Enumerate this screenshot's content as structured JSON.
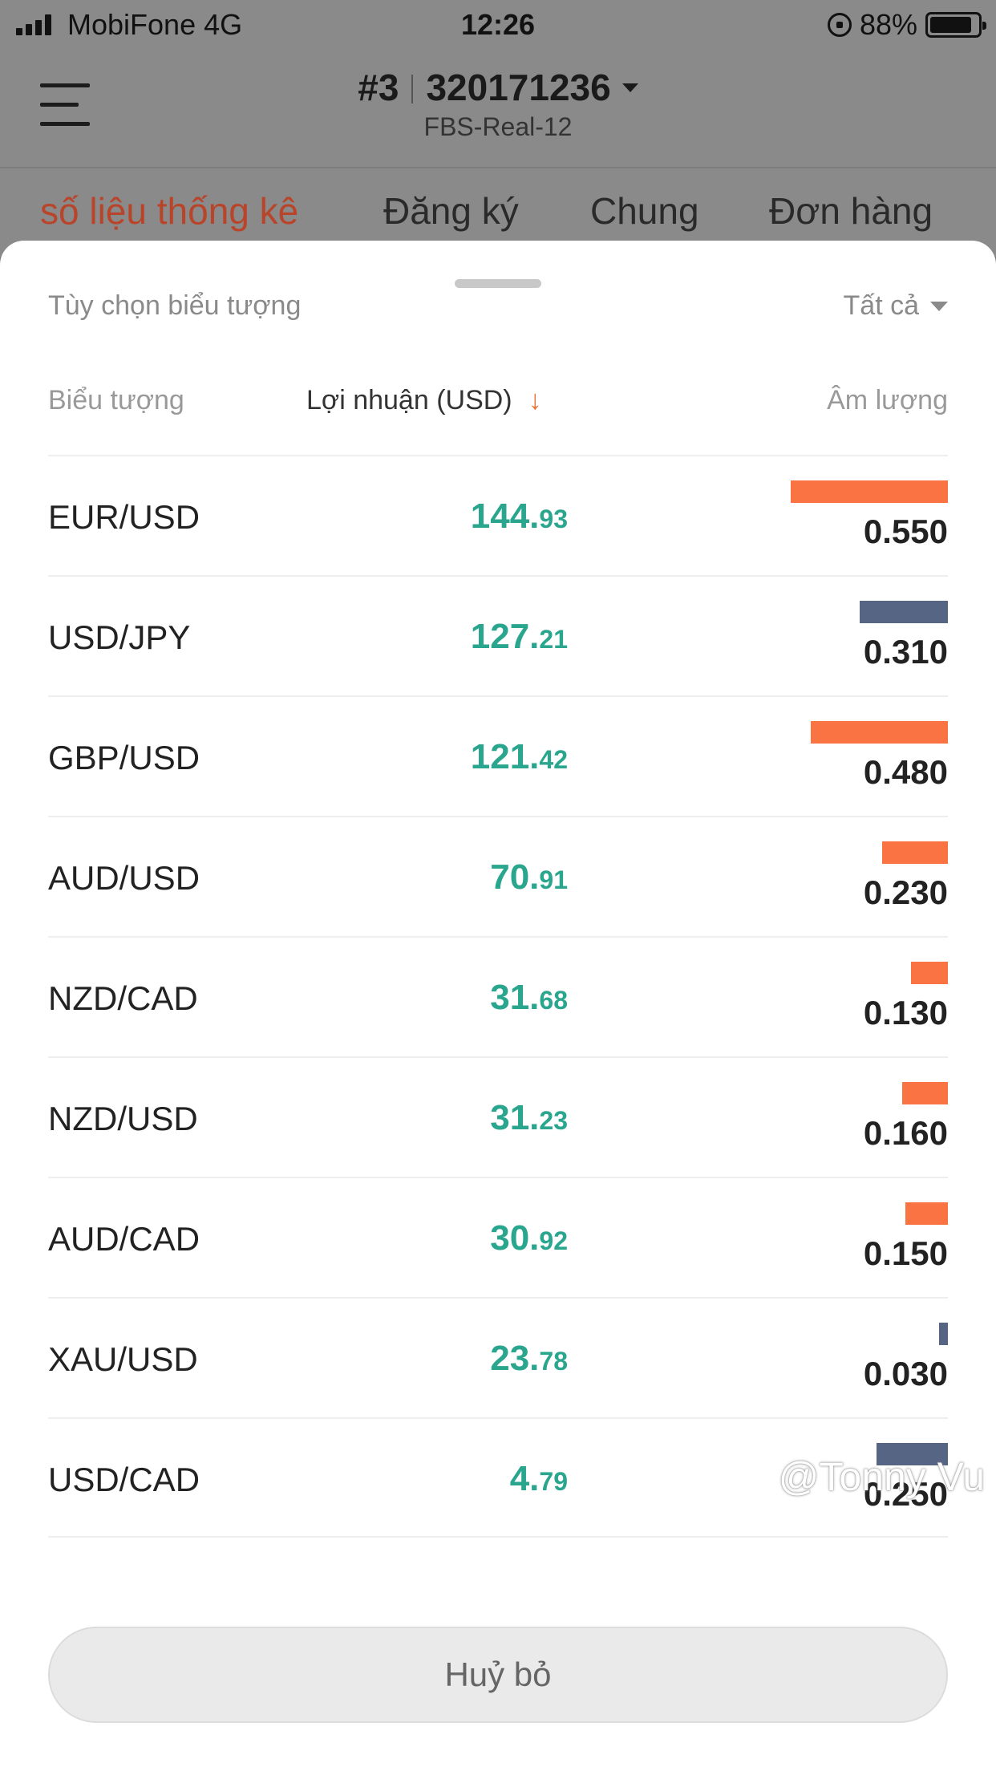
{
  "status_bar": {
    "carrier": "MobiFone   4G",
    "time": "12:26",
    "battery": "88%",
    "battery_level": 0.88
  },
  "header": {
    "account_number": "#3",
    "account_id": "320171236",
    "server": "FBS-Real-12"
  },
  "tabs": [
    {
      "label": "số liệu thống kê",
      "active": true
    },
    {
      "label": "Đăng ký",
      "active": false
    },
    {
      "label": "Chung",
      "active": false
    },
    {
      "label": "Đơn hàng",
      "active": false
    }
  ],
  "sheet": {
    "title": "Tùy chọn biểu tượng",
    "filter_label": "Tất cả",
    "columns": {
      "symbol": "Biểu tượng",
      "profit": "Lợi nhuận (USD)",
      "sort_indicator": "↓",
      "volume": "Âm lượng"
    },
    "rows": [
      {
        "symbol": "EUR/USD",
        "profit_int": "144.",
        "profit_dec": "93",
        "volume": "0.550",
        "bar_color": "#fa7343"
      },
      {
        "symbol": "USD/JPY",
        "profit_int": "127.",
        "profit_dec": "21",
        "volume": "0.310",
        "bar_color": "#556583"
      },
      {
        "symbol": "GBP/USD",
        "profit_int": "121.",
        "profit_dec": "42",
        "volume": "0.480",
        "bar_color": "#fa7343"
      },
      {
        "symbol": "AUD/USD",
        "profit_int": "70.",
        "profit_dec": "91",
        "volume": "0.230",
        "bar_color": "#fa7343"
      },
      {
        "symbol": "NZD/CAD",
        "profit_int": "31.",
        "profit_dec": "68",
        "volume": "0.130",
        "bar_color": "#fa7343"
      },
      {
        "symbol": "NZD/USD",
        "profit_int": "31.",
        "profit_dec": "23",
        "volume": "0.160",
        "bar_color": "#fa7343"
      },
      {
        "symbol": "AUD/CAD",
        "profit_int": "30.",
        "profit_dec": "92",
        "volume": "0.150",
        "bar_color": "#fa7343"
      },
      {
        "symbol": "XAU/USD",
        "profit_int": "23.",
        "profit_dec": "78",
        "volume": "0.030",
        "bar_color": "#556583"
      },
      {
        "symbol": "USD/CAD",
        "profit_int": "4.",
        "profit_dec": "79",
        "volume": "0.250",
        "bar_color": "#556583"
      }
    ],
    "cancel_label": "Huỷ bỏ"
  },
  "watermark": "@Tonny Vu",
  "colors": {
    "accent_orange": "#fa7343",
    "profit_green": "#2aa58e",
    "bar_slate": "#556583",
    "active_tab": "#b8452a"
  }
}
